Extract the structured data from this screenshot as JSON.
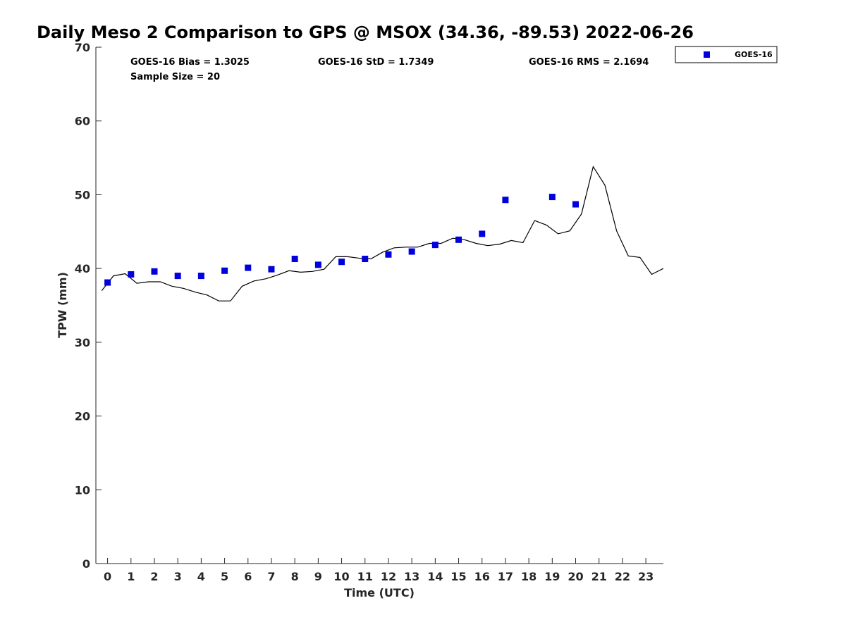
{
  "chart_data": {
    "type": "scatter",
    "title": "Daily Meso 2 Comparison to GPS @ MSOX (34.36, -89.53) 2022-06-26",
    "xlabel": "Time (UTC)",
    "ylabel": "TPW (mm)",
    "xlim": [
      -0.5,
      23.75
    ],
    "ylim": [
      0,
      70
    ],
    "x_ticks": [
      "0",
      "1",
      "2",
      "3",
      "4",
      "5",
      "6",
      "7",
      "8",
      "9",
      "10",
      "11",
      "12",
      "13",
      "14",
      "15",
      "16",
      "17",
      "18",
      "19",
      "20",
      "21",
      "22",
      "23"
    ],
    "y_ticks": [
      "0",
      "10",
      "20",
      "30",
      "40",
      "50",
      "60",
      "70"
    ],
    "grid": false,
    "legend_position": "top-right, outside plot",
    "stats": {
      "bias": "GOES-16 Bias = 1.3025",
      "std": "GOES-16 StD = 1.7349",
      "rms": "GOES-16 RMS = 2.1694",
      "sample_size": "Sample Size = 20"
    },
    "series": [
      {
        "name": "GOES-16",
        "kind": "scatter",
        "marker": "square",
        "color": "#0000dd",
        "x": [
          0,
          1,
          2,
          3,
          4,
          5,
          6,
          7,
          8,
          9,
          10,
          11,
          12,
          13,
          14,
          15,
          16,
          17,
          19,
          20
        ],
        "y": [
          38.1,
          39.2,
          39.6,
          39.0,
          39.0,
          39.7,
          40.1,
          39.9,
          41.3,
          40.5,
          40.9,
          41.3,
          41.9,
          42.3,
          43.2,
          43.9,
          44.7,
          49.3,
          49.7,
          48.7
        ]
      },
      {
        "kind": "line",
        "color": "#000000",
        "x": [
          -0.25,
          0.25,
          0.75,
          1.25,
          1.75,
          2.25,
          2.75,
          3.25,
          3.75,
          4.25,
          4.75,
          5.25,
          5.75,
          6.25,
          6.75,
          7.25,
          7.75,
          8.25,
          8.75,
          9.25,
          9.75,
          10.25,
          10.75,
          11.25,
          11.75,
          12.25,
          12.75,
          13.25,
          13.75,
          14.25,
          14.75,
          15.25,
          15.75,
          16.25,
          16.75,
          17.25,
          17.75,
          18.25,
          18.75,
          19.25,
          19.75,
          20.25,
          20.75,
          21.25,
          21.75,
          22.25,
          22.75,
          23.25,
          23.75
        ],
        "y": [
          37.0,
          39.0,
          39.3,
          38.0,
          38.2,
          38.2,
          37.6,
          37.3,
          36.8,
          36.4,
          35.6,
          35.6,
          37.6,
          38.3,
          38.6,
          39.1,
          39.7,
          39.5,
          39.6,
          39.9,
          41.6,
          41.6,
          41.4,
          41.3,
          42.2,
          42.8,
          42.9,
          42.9,
          43.4,
          43.4,
          44.1,
          43.9,
          43.4,
          43.1,
          43.3,
          43.8,
          43.5,
          46.5,
          45.9,
          44.7,
          45.1,
          47.4,
          53.8,
          51.3,
          45.1,
          41.7,
          41.5,
          39.2,
          40.0
        ]
      }
    ]
  }
}
